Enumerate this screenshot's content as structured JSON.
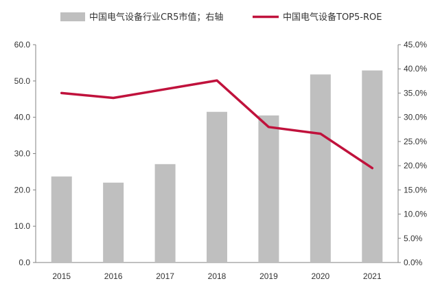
{
  "chart_data": {
    "type": "bar+line",
    "categories": [
      "2015",
      "2016",
      "2017",
      "2018",
      "2019",
      "2020",
      "2021"
    ],
    "series": [
      {
        "name": "中国电气设备行业CR5市值；右轴",
        "type": "bar",
        "axis": "left",
        "color": "#bfbfbf",
        "values": [
          23.7,
          22.0,
          27.1,
          41.5,
          40.5,
          51.8,
          52.9
        ]
      },
      {
        "name": "中国电气设备TOP5-ROE",
        "type": "line",
        "axis": "right",
        "color": "#c0123c",
        "values": [
          35.0,
          34.0,
          35.8,
          37.6,
          28.0,
          26.6,
          19.5
        ]
      }
    ],
    "y_left": {
      "lim": [
        0,
        60
      ],
      "ticks": [
        "0.0",
        "10.0",
        "20.0",
        "30.0",
        "40.0",
        "50.0",
        "60.0"
      ]
    },
    "y_right": {
      "lim": [
        0,
        45
      ],
      "ticks": [
        "0.0%",
        "5.0%",
        "10.0%",
        "15.0%",
        "20.0%",
        "25.0%",
        "30.0%",
        "35.0%",
        "40.0%",
        "45.0%"
      ]
    },
    "grid": false,
    "legend_position": "top"
  }
}
